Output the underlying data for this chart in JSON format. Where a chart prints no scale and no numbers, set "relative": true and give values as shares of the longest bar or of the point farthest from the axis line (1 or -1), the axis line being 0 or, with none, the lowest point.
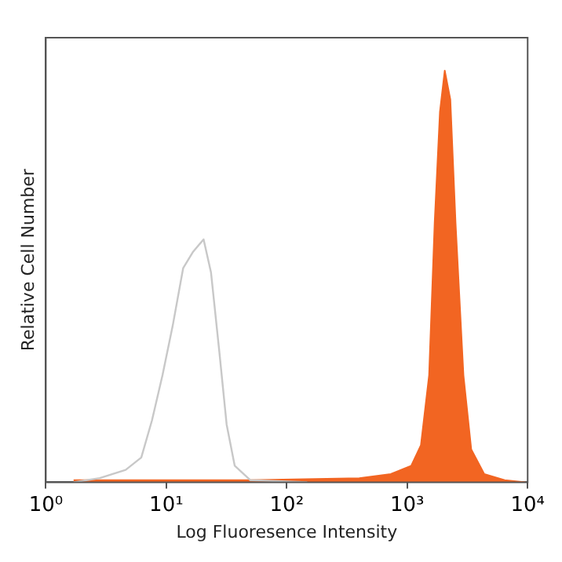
{
  "chart_data": {
    "type": "line",
    "xlabel": "Log Fluoresence Intensity",
    "ylabel": "Relative Cell Number",
    "relative": true,
    "log": "x",
    "grid": false,
    "legend": false,
    "marker": "none",
    "xlim": [
      1,
      10000
    ],
    "xticks": [
      {
        "value": 1,
        "label": "10⁰"
      },
      {
        "value": 10,
        "label": "10¹"
      },
      {
        "value": 100,
        "label": "10²"
      },
      {
        "value": 1000,
        "label": "10³"
      },
      {
        "value": 10000,
        "label": "10⁴"
      }
    ],
    "series": [
      {
        "color": "#c8c8c8",
        "x": [
          1.7,
          2.8,
          4.6,
          6.2,
          7.6,
          9.3,
          11.3,
          13.8,
          16.7,
          20.4,
          23.5,
          27.5,
          31.7,
          37,
          50,
          148
        ],
        "values": [
          0,
          0.01,
          0.03,
          0.06,
          0.15,
          0.26,
          0.38,
          0.52,
          0.56,
          0.59,
          0.51,
          0.32,
          0.14,
          0.04,
          0.005,
          0
        ]
      },
      {
        "type": "area",
        "color": "#f26522",
        "x": [
          1.7,
          50,
          400,
          730,
          1080,
          1300,
          1520,
          1690,
          1870,
          2050,
          2280,
          2520,
          2930,
          3400,
          4360,
          6450,
          9600
        ],
        "values": [
          0.005,
          0.005,
          0.01,
          0.02,
          0.04,
          0.09,
          0.26,
          0.63,
          0.9,
          1,
          0.93,
          0.63,
          0.26,
          0.08,
          0.02,
          0.005,
          0
        ]
      }
    ]
  }
}
